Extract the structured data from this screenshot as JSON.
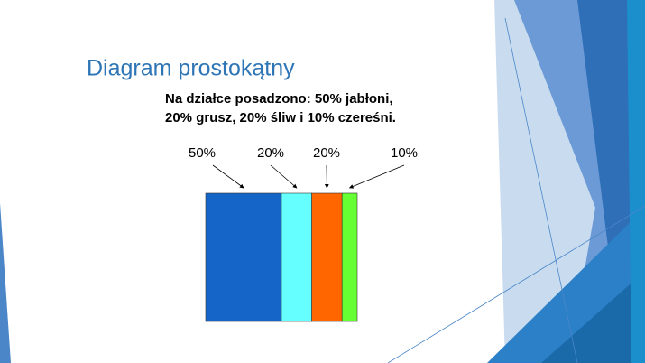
{
  "chart_data": {
    "type": "stacked-rect",
    "title": "Diagram prostokątny",
    "subtitle": [
      "Na działce posadzono: 50% jabłoni,",
      "20% grusz, 20% śliw i 10% czereśni."
    ],
    "values": [
      50,
      20,
      20,
      10
    ],
    "value_labels": [
      "50%",
      "20%",
      "20%",
      "10%"
    ],
    "colors": [
      "#1565c8",
      "#66ffff",
      "#ff6600",
      "#66ff33"
    ]
  }
}
